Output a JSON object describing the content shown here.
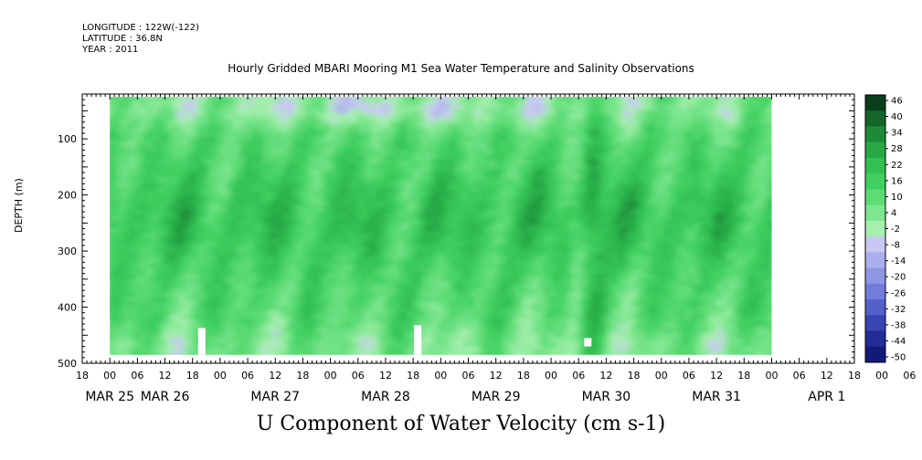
{
  "header": {
    "longitude": "LONGITUDE : 122W(-122)",
    "latitude": "LATITUDE : 36.8N",
    "year": "YEAR : 2011"
  },
  "chart_data": {
    "type": "heatmap",
    "title": "Hourly Gridded MBARI Mooring M1 Sea Water Temperature and Salinity Observations",
    "subtitle": "U Component of Water Velocity (cm s-1)",
    "ylabel": "DEPTH (m)",
    "xlabel": "",
    "x_range_hours": [
      -6,
      162
    ],
    "y_range_m": [
      20,
      500
    ],
    "y_ticks": [
      100,
      200,
      300,
      400,
      500
    ],
    "x_hour_labels": [
      "18",
      "00",
      "06",
      "12",
      "18",
      "00",
      "06",
      "12",
      "18",
      "00",
      "06",
      "12",
      "18",
      "00",
      "06",
      "12",
      "18",
      "00",
      "06",
      "12",
      "18",
      "00",
      "06",
      "12",
      "18",
      "00",
      "06",
      "12",
      "18",
      "00",
      "06",
      "12"
    ],
    "date_labels": [
      {
        "text": "MAR 25",
        "hour": 0
      },
      {
        "text": "MAR 26",
        "hour": 12
      },
      {
        "text": "MAR 27",
        "hour": 36
      },
      {
        "text": "MAR 28",
        "hour": 60
      },
      {
        "text": "MAR 29",
        "hour": 84
      },
      {
        "text": "MAR 30",
        "hour": 108
      },
      {
        "text": "MAR 31",
        "hour": 132
      },
      {
        "text": "APR  1",
        "hour": 156
      }
    ],
    "data_extent": {
      "start_hour": 0,
      "end_hour": 144,
      "min_depth": 25,
      "max_depth": 485
    },
    "colorbar": {
      "levels": [
        46,
        40,
        34,
        28,
        22,
        16,
        10,
        4,
        -2,
        -8,
        -14,
        -20,
        -26,
        -32,
        -38,
        -44,
        -50
      ],
      "colors_top_to_bottom": [
        "#0a3d1a",
        "#14652a",
        "#1e8a38",
        "#27a845",
        "#31c052",
        "#3fd060",
        "#5ddc76",
        "#7ee690",
        "#a6efae",
        "#c8c8f2",
        "#aab0ec",
        "#8e96e4",
        "#727cda",
        "#5660cc",
        "#3a44b4",
        "#242c98",
        "#121a78"
      ]
    },
    "masked_gaps": [
      {
        "hour": 20,
        "depth_top": 437,
        "depth_bottom": 485
      },
      {
        "hour": 67,
        "depth_top": 432,
        "depth_bottom": 485
      },
      {
        "hour": 104,
        "depth_top": 455,
        "depth_bottom": 470
      }
    ],
    "description_of_field": "Positive (green) eastward velocity dominates mid-depths 150-300 m; negative (blue) values near the surface, especially MAR 27-29, and near the bottom."
  }
}
